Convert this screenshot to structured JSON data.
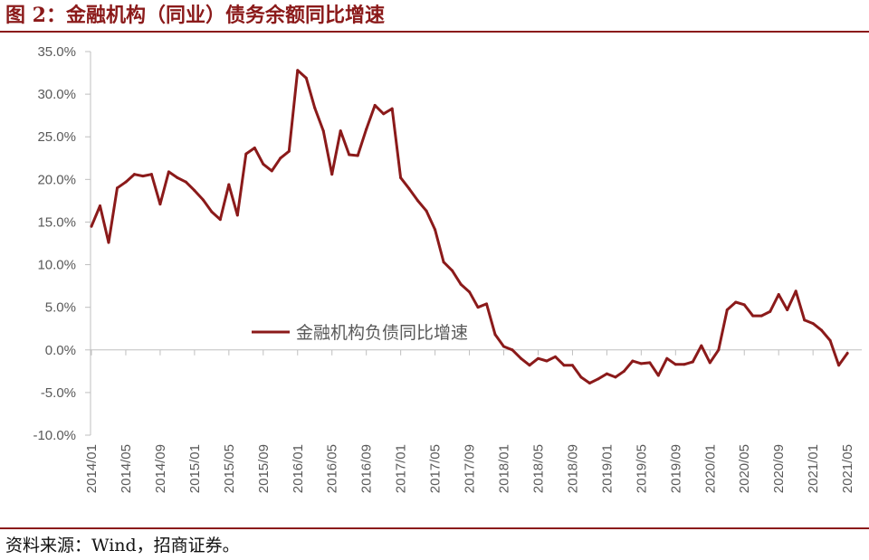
{
  "title": "图 2：金融机构（同业）债务余额同比增速",
  "source": "资料来源：Wind，招商证券。",
  "colors": {
    "accent": "#8b1a1a",
    "series": "#8b1a1a",
    "axis": "#bfbfbf",
    "text": "#595959"
  },
  "chart_data": {
    "type": "line",
    "title": "",
    "xlabel": "",
    "ylabel": "",
    "ylim": [
      -10,
      35
    ],
    "yticks": [
      "35.0%",
      "30.0%",
      "25.0%",
      "20.0%",
      "15.0%",
      "10.0%",
      "5.0%",
      "0.0%",
      "-5.0%",
      "-10.0%"
    ],
    "ytick_values": [
      35,
      30,
      25,
      20,
      15,
      10,
      5,
      0,
      -5,
      -10
    ],
    "xtick_labels": [
      "2014/01",
      "2014/05",
      "2014/09",
      "2015/01",
      "2015/05",
      "2015/09",
      "2016/01",
      "2016/05",
      "2016/09",
      "2017/01",
      "2017/05",
      "2017/09",
      "2018/01",
      "2018/05",
      "2018/09",
      "2019/01",
      "2019/05",
      "2019/09",
      "2020/01",
      "2020/05",
      "2020/09",
      "2021/01",
      "2021/05"
    ],
    "grid": false,
    "legend_position": "center",
    "series": [
      {
        "name": "金融机构负债同比增速",
        "start": "2014/01",
        "values": [
          14.5,
          16.9,
          12.6,
          19.0,
          19.7,
          20.6,
          20.4,
          20.6,
          17.1,
          20.9,
          20.2,
          19.7,
          18.7,
          17.6,
          16.2,
          15.3,
          19.4,
          15.8,
          23.0,
          23.7,
          21.8,
          21.0,
          22.5,
          23.3,
          32.8,
          31.9,
          28.4,
          25.7,
          20.6,
          25.7,
          22.9,
          22.8,
          25.9,
          28.7,
          27.7,
          28.3,
          20.2,
          18.9,
          17.5,
          16.3,
          14.1,
          10.3,
          9.3,
          7.7,
          6.8,
          5.0,
          5.4,
          1.8,
          0.4,
          0.0,
          -1.0,
          -1.8,
          -1.0,
          -1.3,
          -0.8,
          -1.8,
          -1.8,
          -3.2,
          -3.9,
          -3.4,
          -2.8,
          -3.2,
          -2.5,
          -1.3,
          -1.6,
          -1.5,
          -3.0,
          -1.0,
          -1.7,
          -1.7,
          -1.4,
          0.5,
          -1.5,
          0.0,
          4.7,
          5.6,
          5.3,
          4.0,
          4.0,
          4.5,
          6.5,
          4.7,
          6.9,
          3.5,
          3.1,
          2.3,
          1.1,
          -1.8,
          -0.4
        ]
      }
    ]
  }
}
